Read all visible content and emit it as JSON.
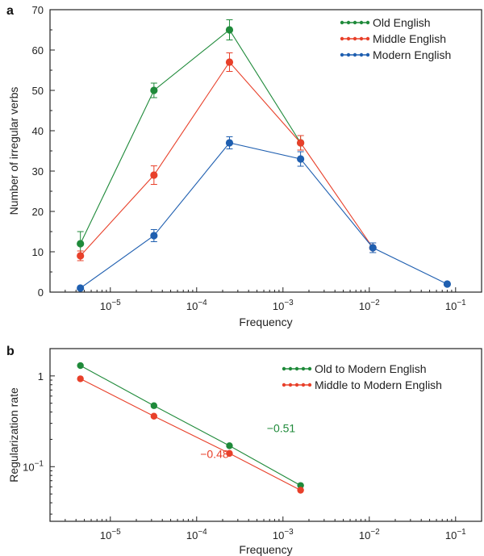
{
  "chart_data": [
    {
      "type": "line",
      "panel_label": "a",
      "xlabel": "Frequency",
      "ylabel": "Number of irregular verbs",
      "xscale": "log",
      "xlim": [
        2e-06,
        0.2
      ],
      "ylim": [
        0,
        70
      ],
      "x_ticks": [
        1e-05,
        0.0001,
        0.001,
        0.01,
        0.1
      ],
      "x_tick_mantissa": "10",
      "x_tick_exponents": [
        "−5",
        "−4",
        "−3",
        "−2",
        "−1"
      ],
      "y_ticks": [
        "0",
        "10",
        "20",
        "30",
        "40",
        "50",
        "60",
        "70"
      ],
      "legend_position": "top-right",
      "series": [
        {
          "name": "Old English",
          "color": "#1f8a3a",
          "points": [
            {
              "x": 4.5e-06,
              "y": 12,
              "err": 3
            },
            {
              "x": 3.2e-05,
              "y": 50,
              "err": 1.8
            },
            {
              "x": 0.00024,
              "y": 65,
              "err": 2.5
            },
            {
              "x": 0.0016,
              "y": 37,
              "err": 1.8
            }
          ]
        },
        {
          "name": "Middle English",
          "color": "#e8402a",
          "points": [
            {
              "x": 4.5e-06,
              "y": 9,
              "err": 1.2
            },
            {
              "x": 3.2e-05,
              "y": 29,
              "err": 2.3
            },
            {
              "x": 0.00024,
              "y": 57,
              "err": 2.3
            },
            {
              "x": 0.0016,
              "y": 37,
              "err": 1.8
            },
            {
              "x": 0.011,
              "y": 11,
              "err": 1.2
            }
          ]
        },
        {
          "name": "Modern English",
          "color": "#1f5fb0",
          "points": [
            {
              "x": 4.5e-06,
              "y": 1,
              "err": 0
            },
            {
              "x": 3.2e-05,
              "y": 14,
              "err": 1.5
            },
            {
              "x": 0.00024,
              "y": 37,
              "err": 1.5
            },
            {
              "x": 0.0016,
              "y": 33,
              "err": 1.8
            },
            {
              "x": 0.011,
              "y": 11,
              "err": 1.2
            },
            {
              "x": 0.08,
              "y": 2,
              "err": 0
            }
          ]
        }
      ]
    },
    {
      "type": "line",
      "panel_label": "b",
      "xlabel": "Frequency",
      "ylabel": "Regularization rate",
      "xscale": "log",
      "yscale": "log",
      "xlim": [
        2e-06,
        0.2
      ],
      "ylim": [
        0.025,
        2
      ],
      "x_ticks": [
        1e-05,
        0.0001,
        0.001,
        0.01,
        0.1
      ],
      "x_tick_mantissa": "10",
      "x_tick_exponents": [
        "−5",
        "−4",
        "−3",
        "−2",
        "−1"
      ],
      "y_tick_labels": [
        {
          "value": 1,
          "mantissa": "1",
          "exponent": ""
        },
        {
          "value": 0.1,
          "mantissa": "10",
          "exponent": "−1"
        }
      ],
      "legend_position": "top-right",
      "series": [
        {
          "name": "Old to Modern English",
          "color": "#1f8a3a",
          "slope_label": "−0.51",
          "slope_label_at": {
            "x": 0.00065,
            "y": 0.24
          },
          "points": [
            {
              "x": 4.5e-06,
              "y": 1.3
            },
            {
              "x": 3.2e-05,
              "y": 0.47
            },
            {
              "x": 0.00024,
              "y": 0.17
            },
            {
              "x": 0.0016,
              "y": 0.062
            }
          ]
        },
        {
          "name": "Middle to Modern English",
          "color": "#e8402a",
          "slope_label": "−0.48",
          "slope_label_at": {
            "x": 0.00011,
            "y": 0.125
          },
          "points": [
            {
              "x": 4.5e-06,
              "y": 0.93
            },
            {
              "x": 3.2e-05,
              "y": 0.36
            },
            {
              "x": 0.00024,
              "y": 0.14
            },
            {
              "x": 0.0016,
              "y": 0.055
            }
          ]
        }
      ]
    }
  ]
}
